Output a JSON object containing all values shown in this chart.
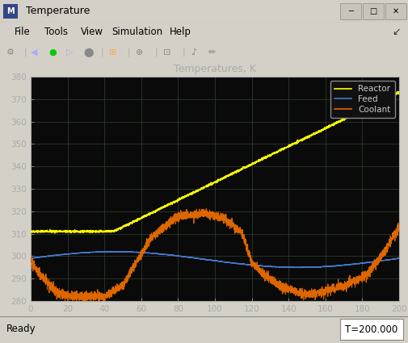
{
  "title": "Temperatures, K",
  "xlim": [
    0,
    200
  ],
  "ylim": [
    280,
    380
  ],
  "xticks": [
    0,
    20,
    40,
    60,
    80,
    100,
    120,
    140,
    160,
    180,
    200
  ],
  "yticks": [
    280,
    290,
    300,
    310,
    320,
    330,
    340,
    350,
    360,
    370,
    380
  ],
  "bg_color": "#0a0a0a",
  "fig_bg_color": "#d4d0c8",
  "title_color": "#aaaaaa",
  "tick_color": "#aaaaaa",
  "grid_color": "#2a3a2a",
  "reactor_color": "#ffff00",
  "feed_color": "#4477cc",
  "coolant_color": "#dd6600",
  "legend_bg": "#111111",
  "legend_edge": "#888888",
  "legend_text_color": "#cccccc",
  "window_title": "Temperature",
  "status_left": "Ready",
  "status_right": "T=200.000",
  "titlebar_bg": "#d4d0c8",
  "menubar_bg": "#d4d0c8",
  "toolbar_bg": "#d4d0c8",
  "statusbar_bg": "#d4d0c8",
  "plot_border_color": "#aaaaaa"
}
